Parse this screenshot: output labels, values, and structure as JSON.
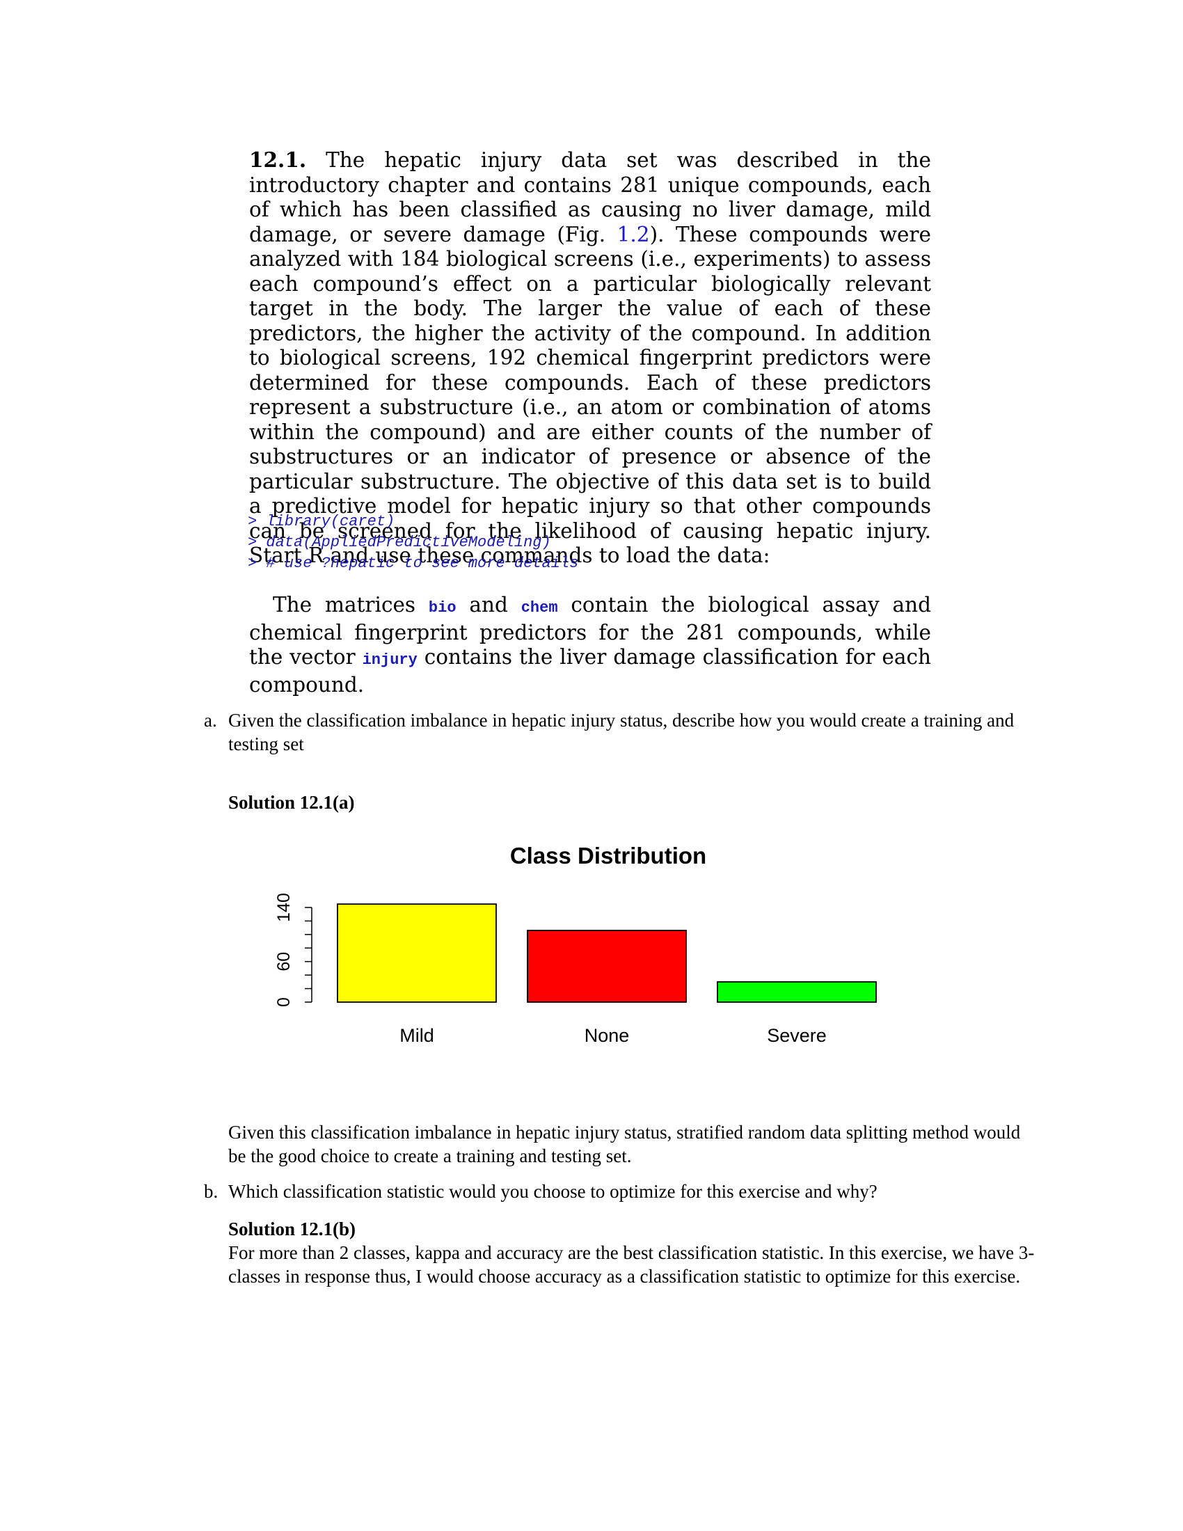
{
  "problem": {
    "number": "12.1.",
    "text_before_link": " The hepatic injury data set was described in the introductory chapter and contains 281 unique compounds, each of which has been classified as causing no liver damage, mild damage, or severe damage (Fig.",
    "fig_link": "1.2",
    "text_after_link": "). These compounds were analyzed with 184 biological screens (i.e., experiments) to assess each compound’s effect on a particular biologically relevant target in the body. The larger the value of each of these predictors, the higher the activity of the compound. In addition to biological screens, 192 chemical fingerprint predictors were determined for these compounds. Each of these predictors represent a substructure (i.e., an atom or combination of atoms within the compound) and are either counts of the number of substructures or an indicator of presence or absence of the particular substructure. The objective of this data set is to build a predictive model for hepatic injury so that other compounds can be screened for the likelihood of causing hepatic injury. Start R and use these commands to load the data:"
  },
  "code_lines": [
    "> library(caret)",
    "> data(AppliedPredictiveModeling)",
    "> # use ?hepatic to see more details"
  ],
  "matrices": {
    "t1": "The matrices ",
    "c1": "bio",
    "t2": " and ",
    "c2": "chem",
    "t3": " contain the biological assay and chemical fingerprint predictors for the 281 compounds, while the vector ",
    "c3": "injury",
    "t4": " contains the liver damage classification for each compound."
  },
  "question_a": {
    "marker": "a.",
    "text": "Given the classification imbalance in hepatic injury status, describe how you would create a training and testing set"
  },
  "solution_a": {
    "title": "Solution 12.1(a)",
    "text": "Given this classification imbalance in hepatic injury status, stratified random data splitting method would be the good choice to create a training and testing set."
  },
  "question_b": {
    "marker": "b.",
    "text": "Which classification statistic would you choose to optimize for this exercise and why?"
  },
  "solution_b": {
    "title": "Solution 12.1(b)",
    "text": "For more than 2 classes, kappa and accuracy are the best classification statistic. In this exercise, we have 3-classes in response thus, I would choose accuracy as a classification statistic to optimize for this exercise."
  },
  "chart_data": {
    "type": "bar",
    "title": "Class Distribution",
    "categories": [
      "Mild",
      "None",
      "Severe"
    ],
    "values": [
      145,
      106,
      30
    ],
    "colors": [
      "#ffff00",
      "#ff0000",
      "#00ff00"
    ],
    "xlabel": "",
    "ylabel": "",
    "ylim": [
      0,
      140
    ],
    "y_tick_labels": [
      "0",
      "60",
      "140"
    ],
    "grid": false
  }
}
